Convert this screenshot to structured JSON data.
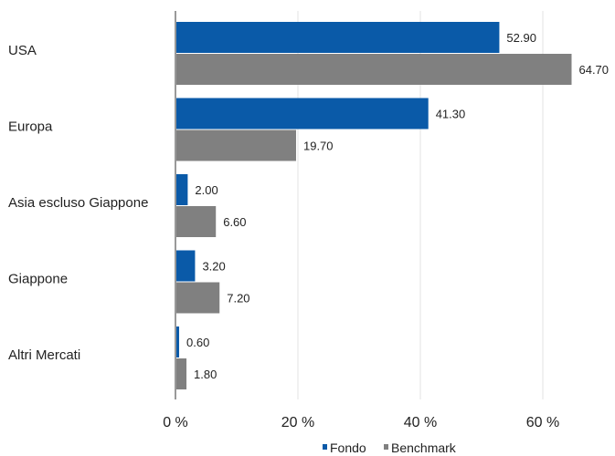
{
  "colors": {
    "fondo": "#0a5aa8",
    "benchmark": "#808080",
    "grid": "#e3e3e3",
    "axis": "#333333"
  },
  "chart_data": {
    "type": "bar",
    "orientation": "horizontal",
    "title": "",
    "xlabel": "",
    "ylabel": "",
    "categories": [
      "USA",
      "Europa",
      "Asia escluso Giappone",
      "Giappone",
      "Altri Mercati"
    ],
    "series": [
      {
        "name": "Fondo",
        "values": [
          52.9,
          41.3,
          2.0,
          3.2,
          0.6
        ],
        "labels": [
          "52.90",
          "41.30",
          "2.00",
          "3.20",
          "0.60"
        ]
      },
      {
        "name": "Benchmark",
        "values": [
          64.7,
          19.7,
          6.6,
          7.2,
          1.8
        ],
        "labels": [
          "64.70",
          "19.70",
          "6.60",
          "7.20",
          "1.80"
        ]
      }
    ],
    "xlim": [
      0,
      70
    ],
    "ticks": [
      0,
      20,
      40,
      60
    ],
    "tick_labels": [
      "0 %",
      "20 %",
      "40 %",
      "60 %"
    ],
    "grid": true,
    "legend": "bottom-right"
  }
}
